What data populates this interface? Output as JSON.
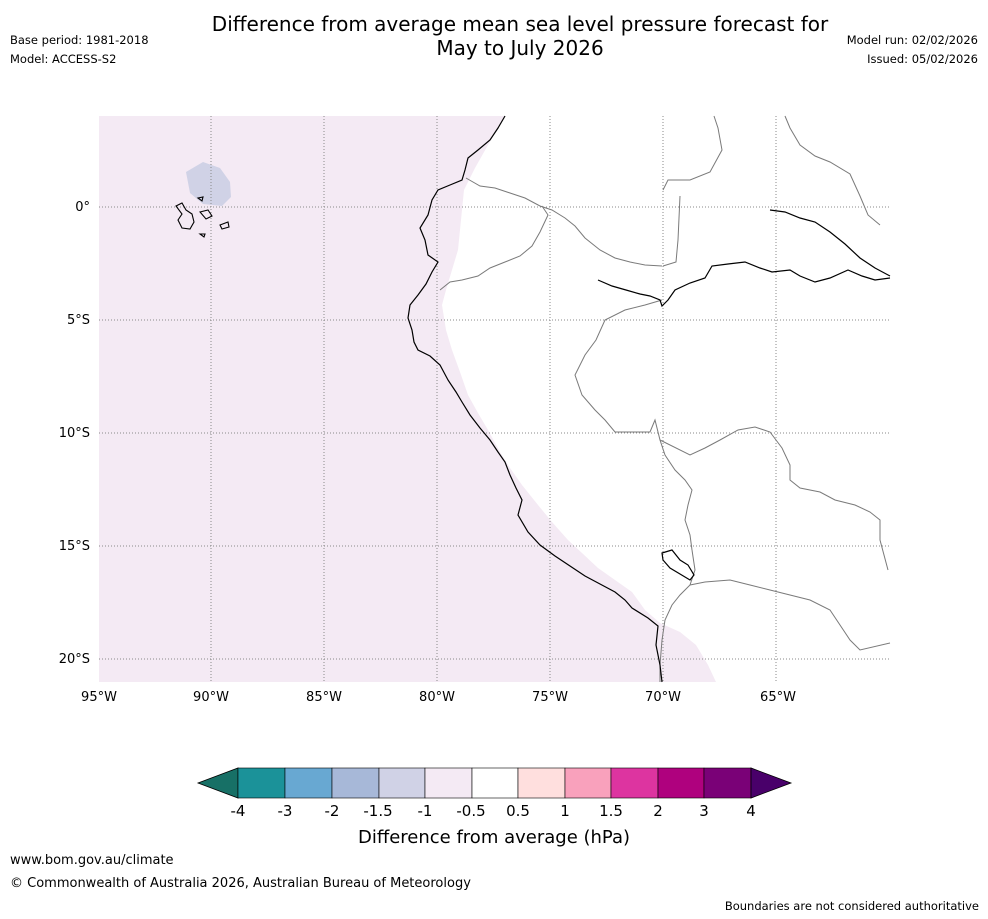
{
  "header": {
    "title_line1": "Difference from average mean sea level pressure forecast for",
    "title_line2": "May to July 2026",
    "base_period": "Base period: 1981-2018",
    "model": "Model: ACCESS-S2",
    "model_run": "Model run: 02/02/2026",
    "issued": "Issued: 05/02/2026"
  },
  "map": {
    "lat_labels": [
      "0°",
      "5°S",
      "10°S",
      "15°S",
      "20°S"
    ],
    "lon_labels": [
      "95°W",
      "90°W",
      "85°W",
      "80°W",
      "75°W",
      "70°W",
      "65°W"
    ],
    "ocean_fill": "#f4eaf4",
    "anomaly_patch_fill": "#d0d2e6",
    "coast_color": "#000000",
    "border_color": "#7a7a7a",
    "grid_color": "#8a8a8a"
  },
  "legend": {
    "title": "Difference from average (hPa)",
    "tick_labels": [
      "-4",
      "-3",
      "-2",
      "-1.5",
      "-1",
      "-0.5",
      "0.5",
      "1",
      "1.5",
      "2",
      "3",
      "4"
    ],
    "colors": [
      "#177066",
      "#1b9299",
      "#68a8d2",
      "#a7b8d8",
      "#d0d2e6",
      "#f4eaf4",
      "#ffffff",
      "#ffdfde",
      "#f9a1bc",
      "#dd34a0",
      "#af017e",
      "#7a0177",
      "#49006a"
    ]
  },
  "footer": {
    "url": "www.bom.gov.au/climate",
    "copyright": "© Commonwealth of Australia 2026, Australian Bureau of Meteorology",
    "disclaimer": "Boundaries are not considered authoritative"
  }
}
